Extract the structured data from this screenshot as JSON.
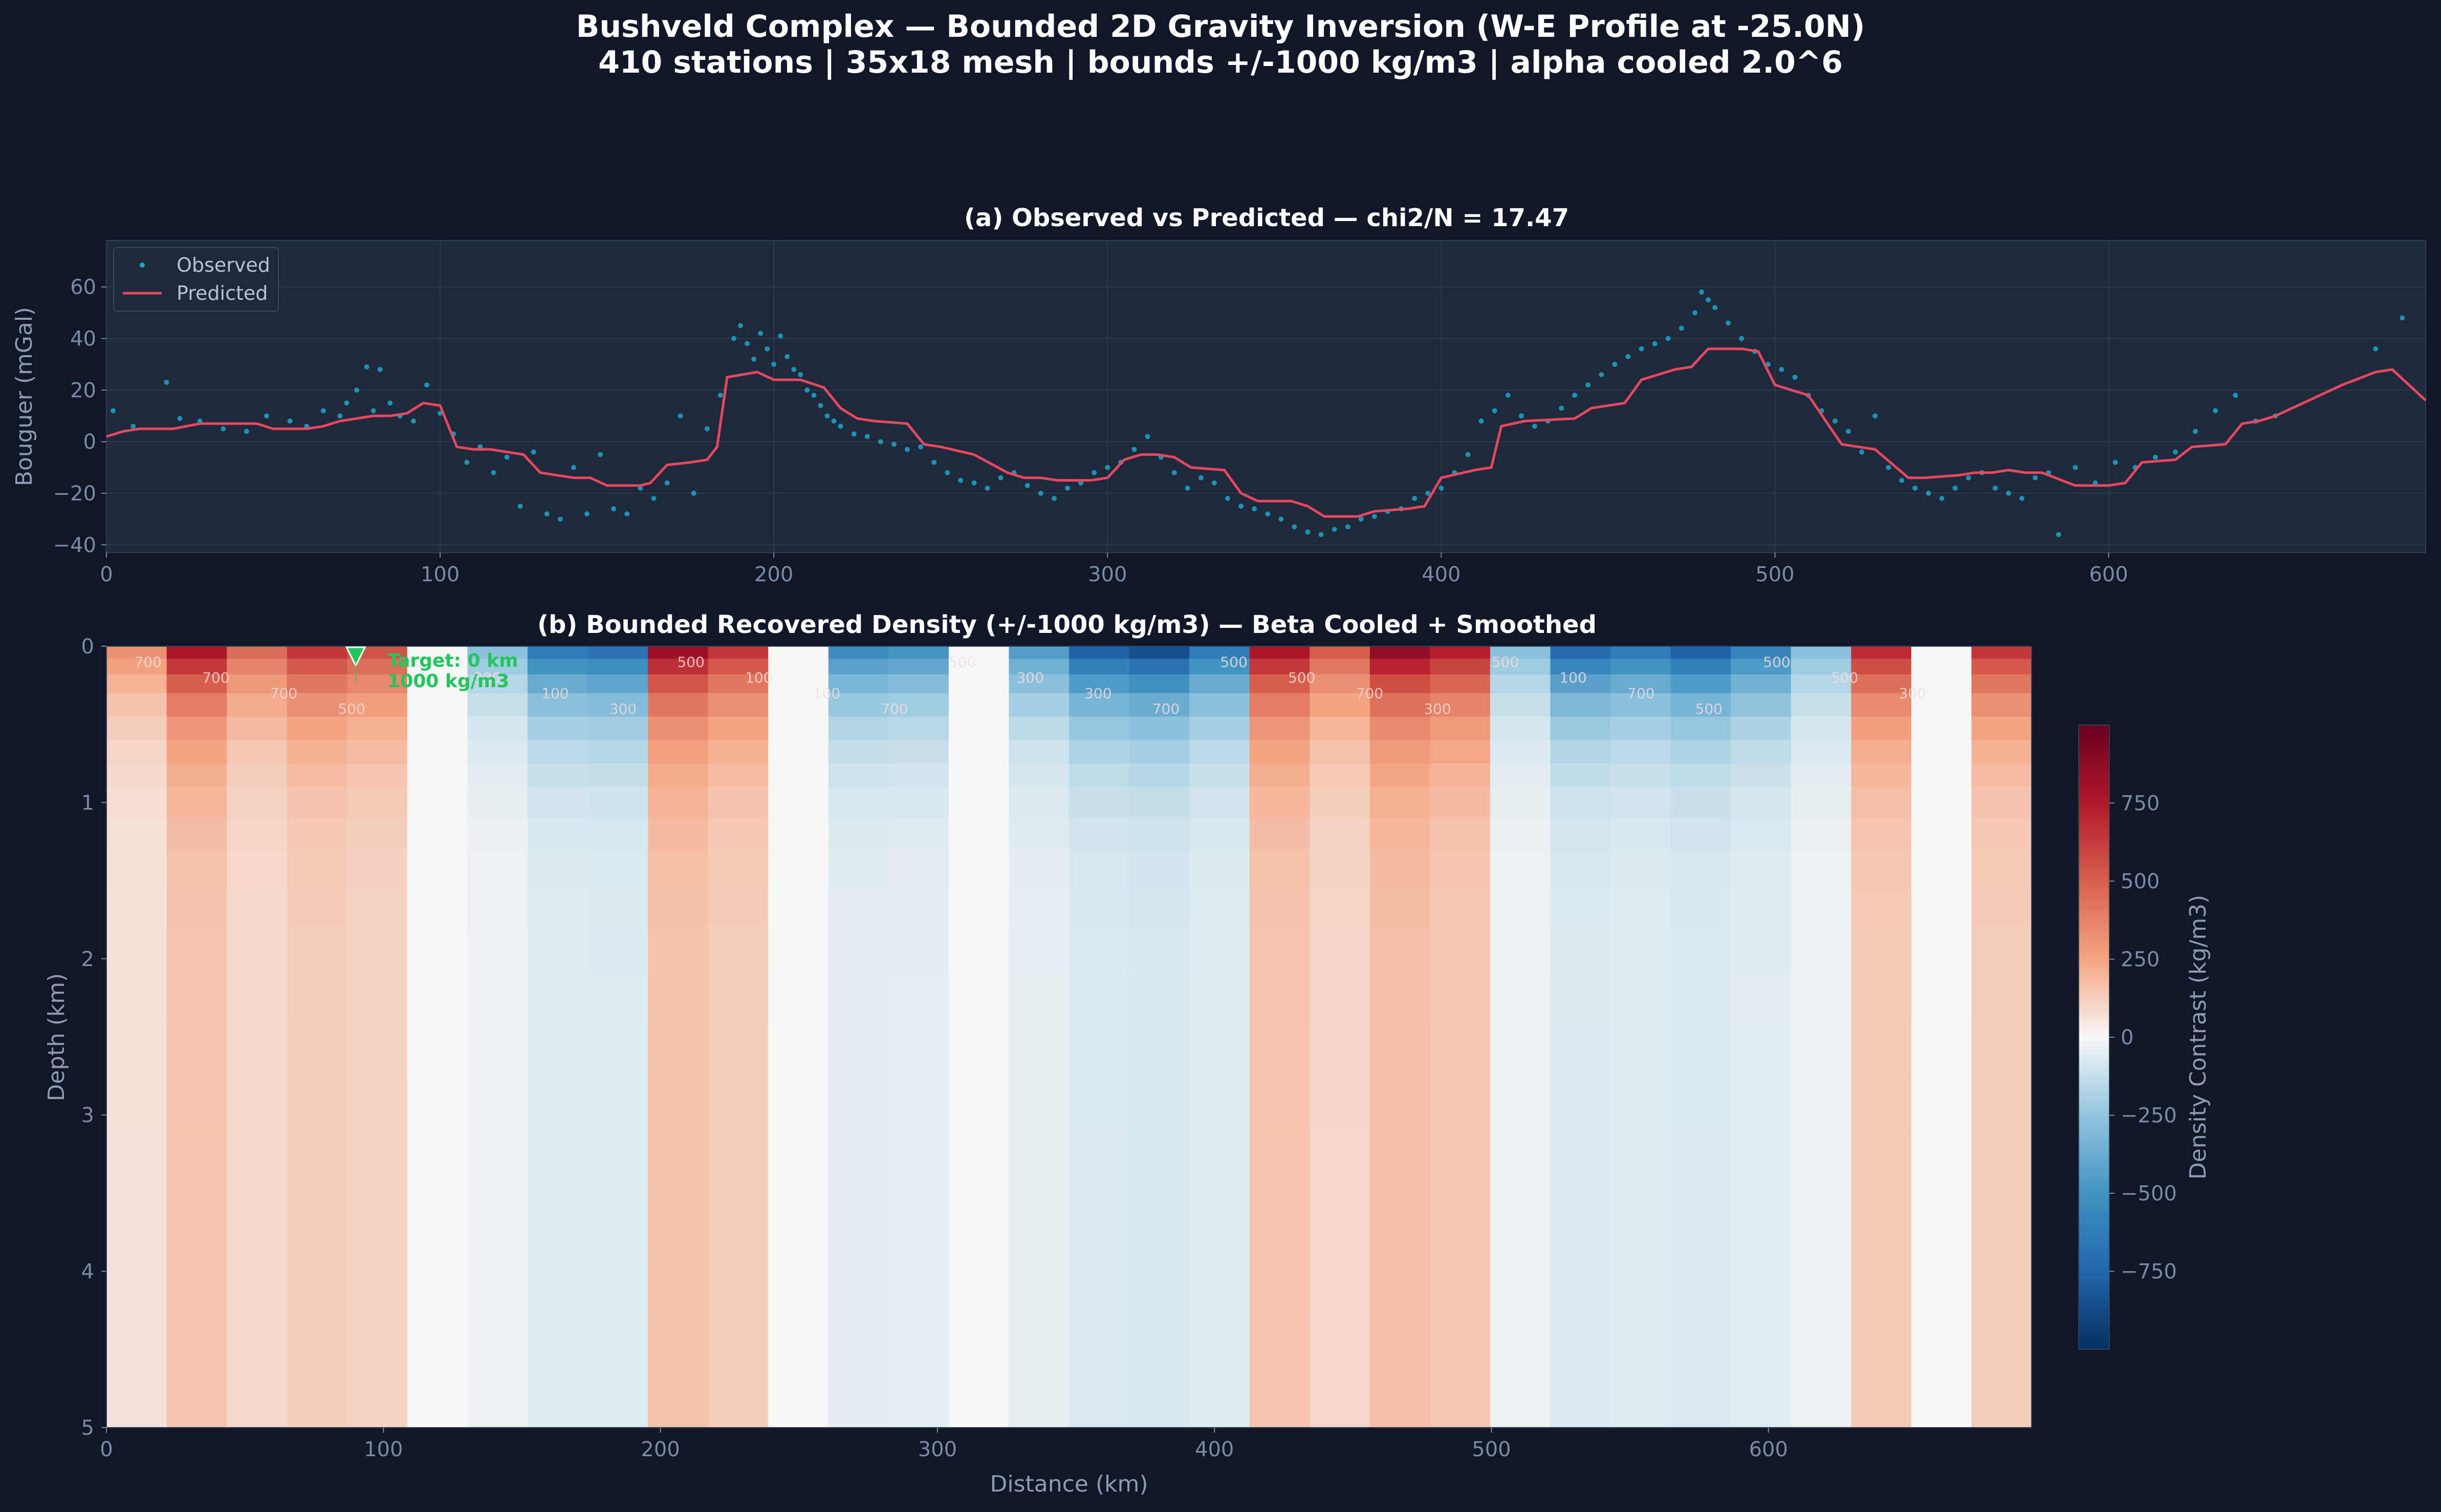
{
  "figure": {
    "title_line1": "Bushveld Complex — Bounded 2D Gravity Inversion (W-E Profile at -25.0N)",
    "title_line2": "410 stations | 35x18 mesh | bounds +/-1000 kg/m3 | alpha cooled 2.0^6"
  },
  "colors": {
    "background": "#0f1729",
    "axes_bg": "#1e293b",
    "observed": "#1ea5c9",
    "predicted": "#e8475f",
    "target": "#22c55e",
    "tick": "#7d8aa3"
  },
  "chart_data": [
    {
      "type": "line",
      "title": "(a) Observed vs Predicted — chi2/N = 17.47",
      "xlabel": "",
      "ylabel": "Bouguer (mGal)",
      "xlim": [
        0,
        695
      ],
      "ylim": [
        -43,
        78
      ],
      "xticks": [
        0,
        100,
        200,
        300,
        400,
        500,
        600
      ],
      "yticks": [
        -40,
        -20,
        0,
        20,
        40,
        60
      ],
      "grid": true,
      "legend_position": "top-left",
      "series": [
        {
          "name": "Predicted",
          "style": "line",
          "x": [
            0,
            5,
            10,
            20,
            28,
            35,
            40,
            45,
            50,
            60,
            65,
            70,
            75,
            80,
            85,
            90,
            95,
            100,
            105,
            110,
            115,
            120,
            125,
            130,
            140,
            145,
            150,
            160,
            163,
            168,
            175,
            180,
            183,
            186,
            195,
            200,
            208,
            215,
            220,
            225,
            230,
            240,
            245,
            250,
            260,
            270,
            275,
            280,
            285,
            290,
            295,
            300,
            305,
            310,
            315,
            320,
            325,
            335,
            340,
            345,
            355,
            360,
            365,
            375,
            380,
            390,
            395,
            400,
            410,
            415,
            418,
            425,
            440,
            445,
            455,
            460,
            470,
            475,
            480,
            490,
            495,
            500,
            505,
            510,
            520,
            525,
            530,
            540,
            545,
            555,
            560,
            565,
            570,
            575,
            580,
            590,
            600,
            605,
            610,
            620,
            625,
            635,
            640,
            645,
            650,
            670,
            680,
            685,
            695
          ],
          "y": [
            2,
            4,
            5,
            5,
            7,
            7,
            7,
            7,
            5,
            5,
            6,
            8,
            9,
            10,
            10,
            11,
            15,
            14,
            -2,
            -3,
            -3,
            -4,
            -5,
            -12,
            -14,
            -14,
            -17,
            -17,
            -16,
            -9,
            -8,
            -7,
            -2,
            25,
            27,
            24,
            24,
            21,
            13,
            9,
            8,
            7,
            -1,
            -2,
            -5,
            -12,
            -14,
            -14,
            -15,
            -15,
            -15,
            -14,
            -7,
            -5,
            -5,
            -6,
            -10,
            -11,
            -20,
            -23,
            -23,
            -25,
            -29,
            -29,
            -27,
            -26,
            -25,
            -14,
            -11,
            -10,
            6,
            8,
            9,
            13,
            15,
            24,
            28,
            29,
            36,
            36,
            35,
            22,
            20,
            18,
            -1,
            -2,
            -3,
            -14,
            -14,
            -13,
            -12,
            -12,
            -11,
            -12,
            -12,
            -17,
            -17,
            -16,
            -8,
            -7,
            -2,
            -1,
            7,
            8,
            10,
            22,
            27,
            28,
            16
          ]
        },
        {
          "name": "Observed",
          "style": "scatter",
          "x": [
            2,
            8,
            18,
            22,
            28,
            35,
            42,
            48,
            55,
            60,
            65,
            70,
            72,
            75,
            78,
            80,
            82,
            85,
            88,
            92,
            96,
            100,
            104,
            108,
            112,
            116,
            120,
            124,
            128,
            132,
            136,
            140,
            144,
            148,
            152,
            156,
            160,
            164,
            168,
            172,
            176,
            180,
            184,
            188,
            190,
            192,
            194,
            196,
            198,
            200,
            202,
            204,
            206,
            208,
            210,
            212,
            214,
            216,
            218,
            220,
            224,
            228,
            232,
            236,
            240,
            244,
            248,
            252,
            256,
            260,
            264,
            268,
            272,
            276,
            280,
            284,
            288,
            292,
            296,
            300,
            304,
            308,
            312,
            316,
            320,
            324,
            328,
            332,
            336,
            340,
            344,
            348,
            352,
            356,
            360,
            364,
            368,
            372,
            376,
            380,
            384,
            388,
            392,
            396,
            400,
            404,
            408,
            412,
            416,
            420,
            424,
            428,
            432,
            436,
            440,
            444,
            448,
            452,
            456,
            460,
            464,
            468,
            472,
            476,
            478,
            480,
            482,
            486,
            490,
            494,
            498,
            502,
            506,
            510,
            514,
            518,
            522,
            526,
            530,
            534,
            538,
            542,
            546,
            550,
            554,
            558,
            562,
            566,
            570,
            574,
            578,
            582,
            585,
            590,
            596,
            602,
            608,
            614,
            620,
            626,
            632,
            638,
            644,
            650,
            680,
            688
          ],
          "y": [
            12,
            6,
            23,
            9,
            8,
            5,
            4,
            10,
            8,
            6,
            12,
            10,
            15,
            20,
            29,
            12,
            28,
            15,
            10,
            8,
            22,
            11,
            3,
            -8,
            -2,
            -12,
            -6,
            -25,
            -4,
            -28,
            -30,
            -10,
            -28,
            -5,
            -26,
            -28,
            -18,
            -22,
            -16,
            10,
            -20,
            5,
            18,
            40,
            45,
            38,
            32,
            42,
            36,
            30,
            41,
            33,
            28,
            26,
            20,
            18,
            14,
            10,
            8,
            6,
            3,
            2,
            0,
            -1,
            -3,
            -2,
            -8,
            -12,
            -15,
            -16,
            -18,
            -14,
            -12,
            -17,
            -20,
            -22,
            -18,
            -16,
            -12,
            -10,
            -8,
            -3,
            2,
            -6,
            -12,
            -18,
            -14,
            -16,
            -22,
            -25,
            -26,
            -28,
            -30,
            -33,
            -35,
            -36,
            -34,
            -33,
            -30,
            -29,
            -27,
            -26,
            -22,
            -20,
            -18,
            -12,
            -5,
            8,
            12,
            18,
            10,
            6,
            8,
            13,
            18,
            22,
            26,
            30,
            33,
            36,
            38,
            40,
            44,
            50,
            58,
            55,
            52,
            46,
            40,
            35,
            30,
            28,
            25,
            18,
            12,
            8,
            4,
            -4,
            10,
            -10,
            -15,
            -18,
            -20,
            -22,
            -18,
            -14,
            -12,
            -18,
            -20,
            -22,
            -14,
            -12,
            -36,
            -10,
            -16,
            -8,
            -10,
            -6,
            -4,
            4,
            12,
            18,
            8,
            10,
            36,
            48
          ]
        }
      ]
    },
    {
      "type": "heatmap",
      "title": "(b) Bounded Recovered Density (+/-1000 kg/m3) — Beta Cooled + Smoothed",
      "xlabel": "Distance (km)",
      "ylabel": "Depth (km)",
      "xlim": [
        0,
        695
      ],
      "ylim": [
        5,
        0
      ],
      "xticks": [
        0,
        100,
        200,
        300,
        400,
        500,
        600
      ],
      "yticks": [
        0,
        1,
        2,
        3,
        4,
        5
      ],
      "colorbar": {
        "label": "Density Contrast (kg/m3)",
        "range": [
          -1000,
          1000
        ],
        "ticks": [
          -750,
          -500,
          -250,
          0,
          250,
          500,
          750
        ],
        "colormap": "RdBu_r"
      },
      "surface_density": [
        350,
        850,
        500,
        700,
        600,
        0,
        -300,
        -700,
        -750,
        900,
        700,
        0,
        -600,
        -550,
        0,
        -500,
        -850,
        -950,
        -700,
        850,
        550,
        950,
        800,
        -300,
        -800,
        -700,
        -850,
        -650,
        -300,
        750,
        0,
        700
      ],
      "contour_labels": [
        "700",
        "700",
        "700",
        "500",
        "300",
        "300",
        "100",
        "300",
        "500",
        "100",
        "100",
        "700",
        "500",
        "300",
        "300",
        "700",
        "500",
        "500",
        "700",
        "300",
        "500",
        "100",
        "700",
        "500",
        "500",
        "500",
        "300"
      ],
      "annotation": {
        "line1": "Target: 0 km",
        "line2": "1000 kg/m3",
        "x": 90,
        "depth": 0
      }
    }
  ]
}
